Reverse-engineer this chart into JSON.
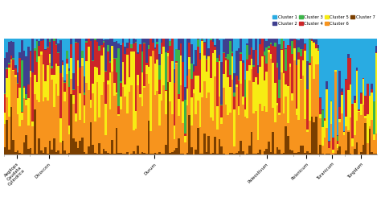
{
  "clusters": [
    "Cluster 1",
    "Cluster 2",
    "Cluster 3",
    "Cluster 4",
    "Cluster 5",
    "Cluster 6",
    "Cluster 7"
  ],
  "cluster_colors": [
    "#29ABE2",
    "#3F3F8F",
    "#3CB54A",
    "#CC2529",
    "#F7EC13",
    "#F7941D",
    "#7B3F00"
  ],
  "stack_order": [
    6,
    5,
    4,
    3,
    2,
    1,
    0
  ],
  "groups": [
    {
      "name": "Aegilops\nCaudata\nCylindrica",
      "n": 12
    },
    {
      "name": "Dicoccon",
      "n": 18
    },
    {
      "name": "Durum",
      "n": 80
    },
    {
      "name": "Paleostivum",
      "n": 25
    },
    {
      "name": "Polonicum",
      "n": 12
    },
    {
      "name": "Turanicum",
      "n": 12
    },
    {
      "name": "Turgidum",
      "n": 15
    }
  ],
  "total_bars": 174,
  "background_color": "#ffffff"
}
